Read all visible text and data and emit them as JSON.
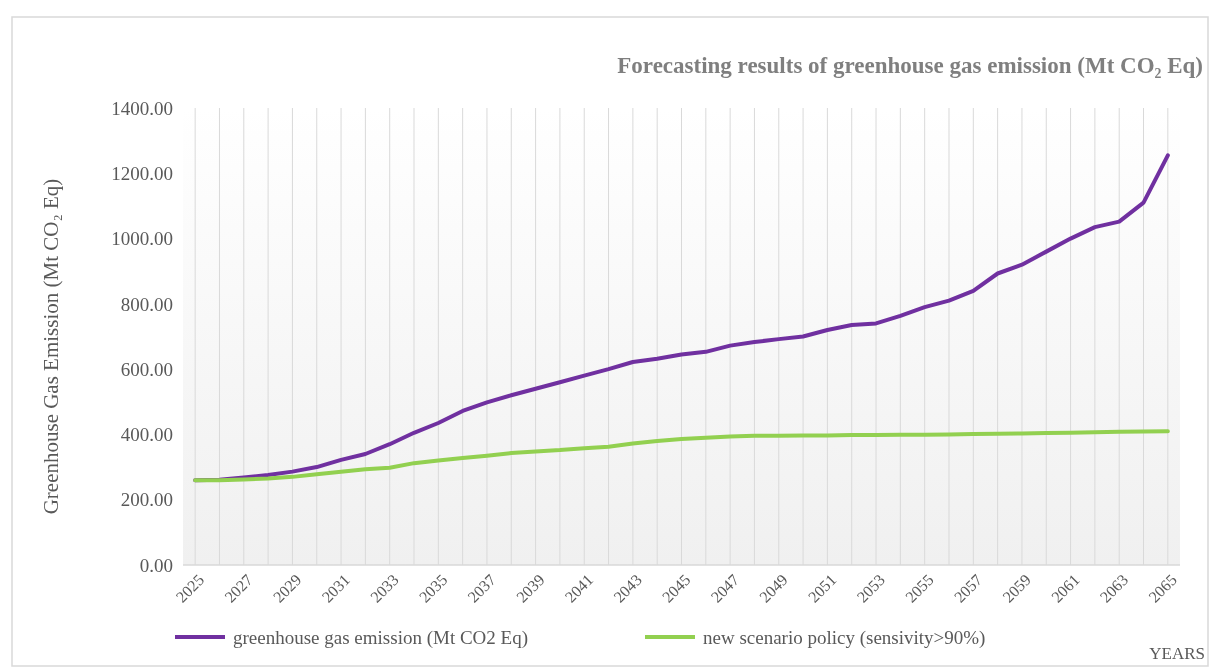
{
  "chart_data": {
    "type": "line",
    "title": "Forecasting results of greenhouse gas emission (Mt CO₂ Eq)",
    "ylabel": "Greenhouse Gas Emission (Mt CO₂ Eq)",
    "xlabel": "YEARS",
    "categories": [
      "2025",
      null,
      "2027",
      null,
      "2029",
      null,
      "2031",
      null,
      "2033",
      null,
      "2035",
      null,
      "2037",
      null,
      "2039",
      null,
      "2041",
      null,
      "2043",
      null,
      "2045",
      null,
      "2047",
      null,
      "2049",
      null,
      "2051",
      null,
      "2053",
      null,
      "2055",
      null,
      "2057",
      null,
      "2059",
      null,
      "2061",
      null,
      "2063",
      null,
      "2065"
    ],
    "series": [
      {
        "name": "greenhouse gas emission (Mt CO2 Eq)",
        "color": "#7030a0",
        "values": [
          260,
          261,
          268,
          276,
          286,
          300,
          322,
          340,
          370,
          405,
          435,
          472,
          498,
          520,
          540,
          560,
          580,
          600,
          622,
          632,
          645,
          653,
          672,
          683,
          692,
          700,
          720,
          735,
          740,
          763,
          790,
          810,
          840,
          893,
          920,
          960,
          1000,
          1035,
          1052,
          1110,
          1255
        ]
      },
      {
        "name": "new scenario policy (sensivity>90%)",
        "color": "#92d050",
        "values": [
          260,
          260,
          262,
          265,
          270,
          278,
          286,
          293,
          298,
          312,
          320,
          328,
          335,
          343,
          348,
          352,
          358,
          362,
          372,
          380,
          386,
          390,
          394,
          396,
          396,
          397,
          397,
          398,
          398,
          399,
          399,
          400,
          401,
          402,
          403,
          404,
          405,
          407,
          408,
          409,
          410
        ]
      }
    ],
    "ylim": [
      0,
      1400
    ],
    "yticks": [
      {
        "value": 0,
        "label": "0.00"
      },
      {
        "value": 200,
        "label": "200.00"
      },
      {
        "value": 400,
        "label": "400.00"
      },
      {
        "value": 600,
        "label": "600.00"
      },
      {
        "value": 800,
        "label": "800.00"
      },
      {
        "value": 1000,
        "label": "1000.00"
      },
      {
        "value": 1200,
        "label": "1200.00"
      },
      {
        "value": 1400,
        "label": "1400.00"
      }
    ],
    "grid": "x",
    "legend": "bottom",
    "marker": "none",
    "line_style": "solid"
  }
}
